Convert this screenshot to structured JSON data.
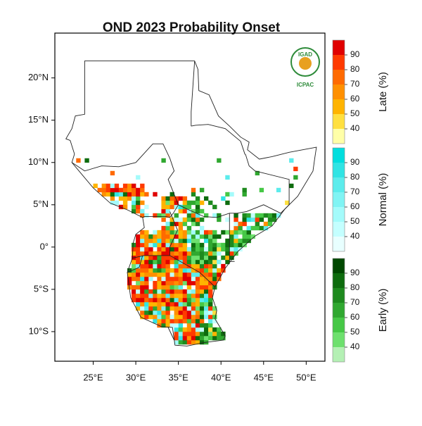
{
  "title": "OND 2023 Probability Onset",
  "map": {
    "xlim": [
      20.5,
      52.2
    ],
    "ylim": [
      -13.5,
      25.3
    ],
    "xticks": [
      {
        "value": 25,
        "label": "25°E"
      },
      {
        "value": 30,
        "label": "30°E"
      },
      {
        "value": 35,
        "label": "35°E"
      },
      {
        "value": 40,
        "label": "40°E"
      },
      {
        "value": 45,
        "label": "45°E"
      },
      {
        "value": 50,
        "label": "50°E"
      }
    ],
    "yticks": [
      {
        "value": -10,
        "label": "10°S"
      },
      {
        "value": -5,
        "label": "5°S"
      },
      {
        "value": 0,
        "label": "0°"
      },
      {
        "value": 5,
        "label": "5°N"
      },
      {
        "value": 10,
        "label": "10°N"
      },
      {
        "value": 15,
        "label": "15°N"
      },
      {
        "value": 20,
        "label": "20°N"
      }
    ]
  },
  "colorbars": [
    {
      "label": "Late (%)",
      "ticks": [
        40,
        50,
        60,
        70,
        80,
        90
      ],
      "colors": [
        "#ffffa8",
        "#ffe040",
        "#ffb400",
        "#ff9000",
        "#ff6a00",
        "#ff3a00",
        "#e00000"
      ]
    },
    {
      "label": "Normal (%)",
      "ticks": [
        40,
        50,
        60,
        70,
        80,
        90
      ],
      "colors": [
        "#e8ffff",
        "#c4ffff",
        "#a4fbfb",
        "#80f4f4",
        "#5cecec",
        "#30e4e4",
        "#00dede"
      ]
    },
    {
      "label": "Early (%)",
      "ticks": [
        40,
        50,
        60,
        70,
        80,
        90
      ],
      "colors": [
        "#b4f0b4",
        "#6ee06e",
        "#46c846",
        "#30a830",
        "#1e8a1e",
        "#0e6c0e",
        "#004800"
      ]
    }
  ],
  "logo": {
    "name": "IGAD",
    "org": "ICPAC"
  }
}
